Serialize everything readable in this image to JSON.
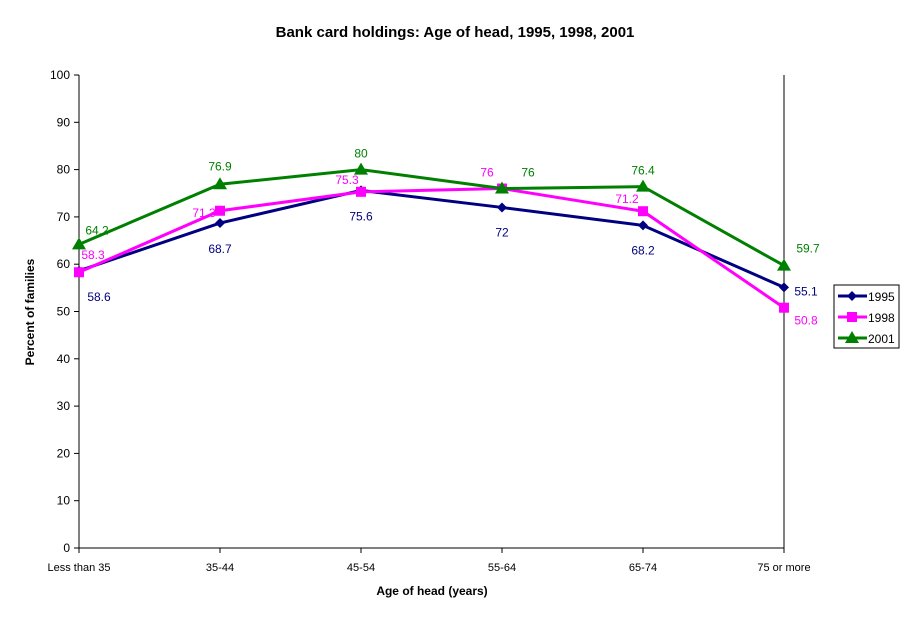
{
  "chart_data": {
    "type": "line",
    "title": "Bank card holdings: Age of head, 1995, 1998, 2001",
    "xlabel": "Age of head (years)",
    "ylabel": "Percent of families",
    "ylim": [
      0,
      100
    ],
    "yticks": [
      0,
      10,
      20,
      30,
      40,
      50,
      60,
      70,
      80,
      90,
      100
    ],
    "grid": false,
    "legend": "right",
    "categories": [
      "Less than 35",
      "35-44",
      "45-54",
      "55-64",
      "65-74",
      "75 or more"
    ],
    "series": [
      {
        "name": "1995",
        "values": [
          58.6,
          68.7,
          75.6,
          72,
          68.2,
          55.1
        ],
        "color": "#000080",
        "marker": "diamond"
      },
      {
        "name": "1998",
        "values": [
          58.3,
          71.3,
          75.3,
          76,
          71.2,
          50.8
        ],
        "color": "#FF00FF",
        "marker": "square"
      },
      {
        "name": "2001",
        "values": [
          64.2,
          76.9,
          80,
          76,
          76.4,
          59.7
        ],
        "color": "#008000",
        "marker": "triangle"
      }
    ]
  }
}
